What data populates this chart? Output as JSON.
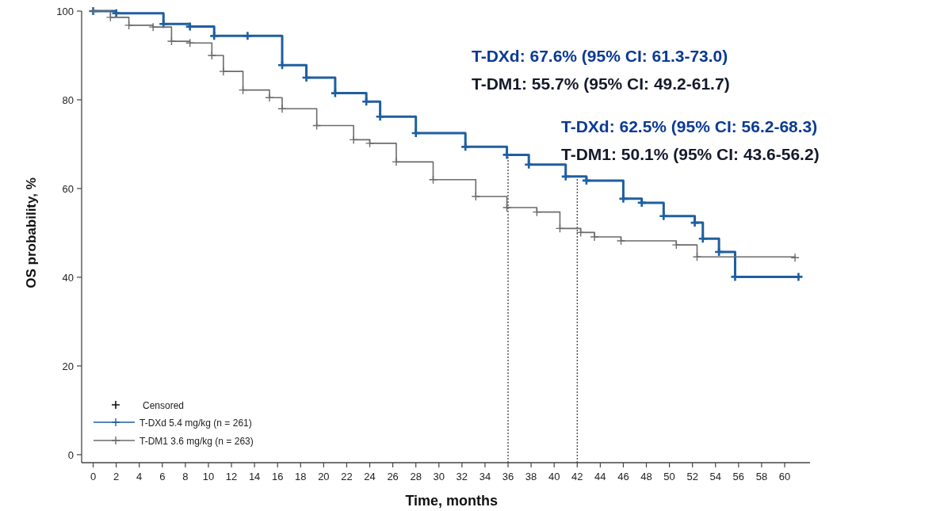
{
  "chart_data": {
    "type": "step",
    "xlabel": "Time, months",
    "ylabel": "OS probability, %",
    "legend_title": "Censored",
    "legend": "bottom left",
    "marker": "cross",
    "line_style": "solid",
    "grid": false,
    "xlim": [
      -1,
      62.2
    ],
    "ylim": [
      -1.8,
      100
    ],
    "xticks": [
      0,
      2,
      4,
      6,
      8,
      10,
      12,
      14,
      16,
      18,
      20,
      22,
      24,
      26,
      28,
      30,
      32,
      34,
      36,
      38,
      40,
      42,
      44,
      46,
      48,
      50,
      52,
      54,
      56,
      58,
      60
    ],
    "yticks": [
      0,
      20,
      40,
      60,
      80,
      100
    ],
    "series": [
      {
        "name": "T-DXd 5.4 mg/kg (n = 261)",
        "color": "#1f5fa0",
        "x": [
          0,
          2,
          6.1,
          8.4,
          10.5,
          13.4,
          16.4,
          18.5,
          21,
          23.7,
          24.9,
          28,
          32.3,
          35.9,
          37.8,
          41,
          42.8,
          46,
          47.6,
          49.5,
          52.2,
          52.9,
          54.3,
          55.7,
          61.2
        ],
        "values": [
          100,
          99.5,
          97.1,
          96.5,
          94.4,
          94.4,
          87.8,
          85,
          81.5,
          79.6,
          76.2,
          72.5,
          69.4,
          67.6,
          65.4,
          62.7,
          61.8,
          57.7,
          56.8,
          53.8,
          52.3,
          48.7,
          45.7,
          40.1,
          40.1
        ]
      },
      {
        "name": "T-DM1 3.6 mg/kg (n = 263)",
        "color": "#6b6b6b",
        "x": [
          0,
          1.5,
          3.1,
          5.2,
          6.8,
          8.4,
          10.3,
          11.3,
          13,
          15.3,
          16.4,
          19.4,
          22.6,
          24,
          26.3,
          29.5,
          33.2,
          35.9,
          38.5,
          40.5,
          42.3,
          43.5,
          45.8,
          50.6,
          52.4,
          60.9
        ],
        "values": [
          100,
          98.6,
          96.8,
          96.4,
          93.2,
          92.8,
          90,
          86.4,
          82.2,
          80.5,
          78,
          74.2,
          71,
          70.2,
          66,
          62,
          58.2,
          55.7,
          54.7,
          51,
          50.1,
          49.1,
          48.2,
          47.3,
          44.6,
          44.4
        ]
      }
    ],
    "ref_lines": [
      {
        "axis": "x",
        "value": 36,
        "line_style": "dotted",
        "color": "#333333"
      },
      {
        "axis": "x",
        "value": 42,
        "line_style": "dotted",
        "color": "#333333"
      }
    ],
    "annotations": [
      "T-DXd: 67.6% (95% CI: 61.3-73.0)",
      "T-DM1: 55.7% (95% CI: 49.2-61.7)",
      "T-DXd: 62.5% (95% CI: 56.2-68.3)",
      "T-DM1: 50.1% (95% CI: 43.6-56.2)"
    ]
  }
}
